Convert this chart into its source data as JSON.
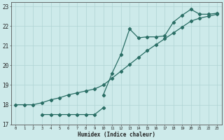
{
  "line1_x": [
    0,
    1,
    2,
    3,
    4,
    5,
    6,
    7,
    8,
    9,
    10,
    11,
    12,
    13,
    14,
    15,
    16,
    17,
    18,
    19,
    20,
    21,
    22,
    23
  ],
  "line1_y": [
    18.0,
    18.0,
    18.0,
    18.1,
    18.25,
    18.35,
    18.5,
    18.6,
    18.7,
    18.8,
    19.0,
    19.35,
    19.7,
    20.05,
    20.4,
    20.75,
    21.05,
    21.35,
    21.65,
    21.95,
    22.25,
    22.4,
    22.5,
    22.6
  ],
  "line2_x": [
    10,
    11,
    12,
    13,
    14,
    15,
    16,
    17,
    18,
    19,
    20,
    21,
    22,
    23
  ],
  "line2_y": [
    18.5,
    19.6,
    20.55,
    21.85,
    21.4,
    21.45,
    21.45,
    21.5,
    22.2,
    22.55,
    22.85,
    22.6,
    22.6,
    22.65
  ],
  "line3_x": [
    3,
    4,
    5,
    6,
    7,
    8,
    9,
    10
  ],
  "line3_y": [
    17.5,
    17.5,
    17.5,
    17.5,
    17.5,
    17.5,
    17.5,
    17.85
  ],
  "line_color": "#2a6e65",
  "bg_color": "#cdeaea",
  "grid_color": "#afd4d4",
  "xlabel": "Humidex (Indice chaleur)",
  "xlim": [
    -0.5,
    23.5
  ],
  "ylim": [
    17.0,
    23.2
  ],
  "yticks": [
    17,
    18,
    19,
    20,
    21,
    22,
    23
  ],
  "xticks": [
    0,
    1,
    2,
    3,
    4,
    5,
    6,
    7,
    8,
    9,
    10,
    11,
    12,
    13,
    14,
    15,
    16,
    17,
    18,
    19,
    20,
    21,
    22,
    23
  ],
  "marker": "D",
  "marker_size": 2.2,
  "line_width": 0.9
}
